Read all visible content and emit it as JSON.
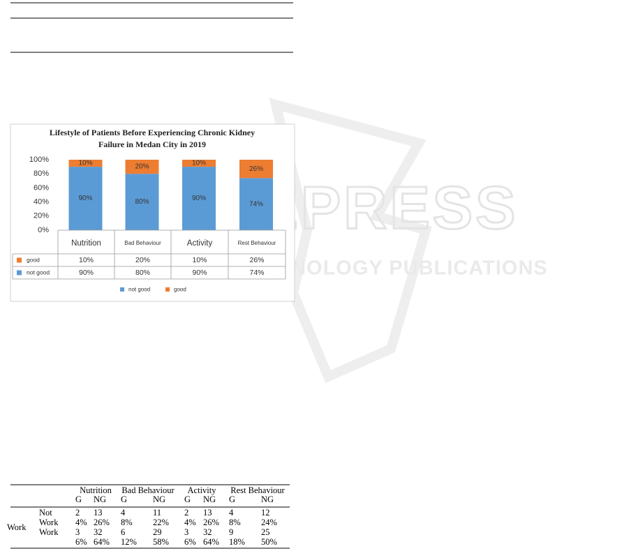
{
  "watermark": {
    "brand": "SCITEPRESS",
    "tagline": "SCIENCE AND TECHNOLOGY PUBLICATIONS"
  },
  "chart_data": {
    "type": "bar",
    "stacked": true,
    "title": [
      "Lifestyle of Patients Before Experiencing Chronic Kidney",
      "Failure in Medan City in 2019"
    ],
    "categories": [
      "Nutrition",
      "Bad Behaviour",
      "Activity",
      "Rest Behaviour"
    ],
    "series": [
      {
        "name": "not good",
        "color": "#5b9bd5",
        "values": [
          90,
          80,
          90,
          74
        ],
        "value_labels": [
          "90%",
          "80%",
          "90%",
          "74%"
        ]
      },
      {
        "name": "good",
        "color": "#ed7d31",
        "values": [
          10,
          20,
          10,
          26
        ],
        "value_labels": [
          "10%",
          "20%",
          "10%",
          "26%"
        ]
      }
    ],
    "ylim": [
      0,
      100
    ],
    "yticks": [
      {
        "value": 0,
        "label": "0%"
      },
      {
        "value": 20,
        "label": "20%"
      },
      {
        "value": 40,
        "label": "40%"
      },
      {
        "value": 60,
        "label": "60%"
      },
      {
        "value": 80,
        "label": "80%"
      },
      {
        "value": 100,
        "label": "100%"
      }
    ],
    "grid": false,
    "legend": "bottom"
  },
  "table": {
    "groups": [
      "Nutrition",
      "Bad Behaviour",
      "Activity",
      "Rest Behaviour"
    ],
    "subheaders": [
      "G",
      "NG",
      "G",
      "NG",
      "G",
      "NG",
      "G",
      "NG"
    ],
    "row_group": "Work",
    "rows": [
      {
        "label": "Not",
        "cells": [
          "2",
          "13",
          "4",
          "11",
          "2",
          "13",
          "4",
          "12"
        ]
      },
      {
        "label": "Work",
        "cells": [
          "4%",
          "26%",
          "8%",
          "22%",
          "4%",
          "26%",
          "8%",
          "24%"
        ]
      },
      {
        "label": "Work",
        "cells": [
          "3",
          "32",
          "6",
          "29",
          "3",
          "32",
          "9",
          "25"
        ]
      },
      {
        "cells": [
          "6%",
          "64%",
          "12%",
          "58%",
          "6%",
          "64%",
          "18%",
          "50%"
        ]
      }
    ]
  }
}
